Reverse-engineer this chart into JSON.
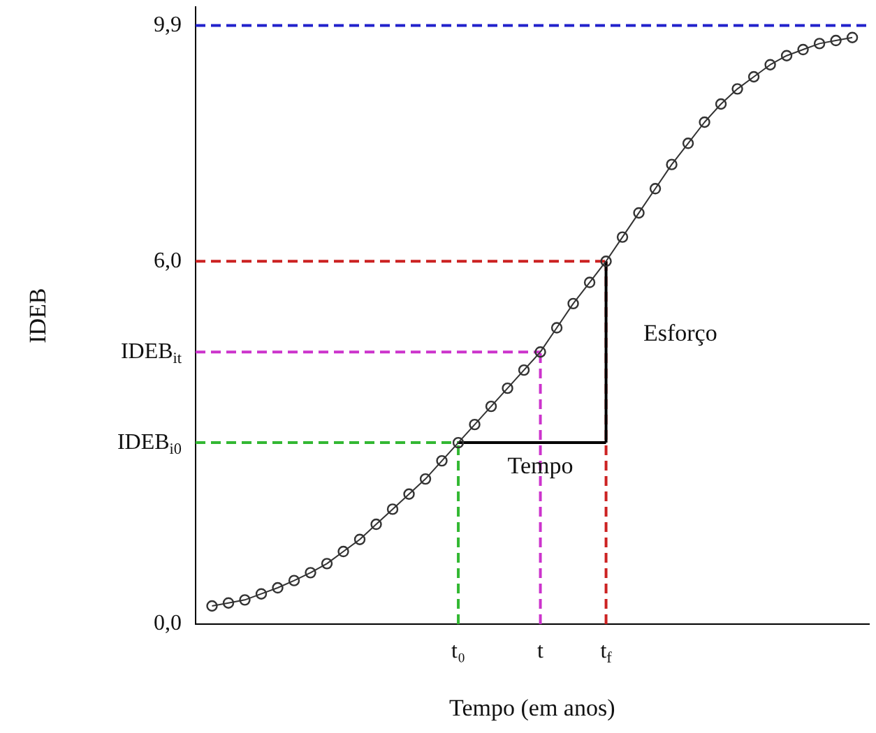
{
  "chart_data": {
    "type": "line",
    "xlabel": "Tempo (em anos)",
    "ylabel": "IDEB",
    "categories": [
      null,
      null,
      null,
      null,
      null,
      null,
      null,
      null,
      null,
      null,
      null,
      null,
      null,
      null,
      null,
      null,
      "t₀",
      null,
      null,
      null,
      null,
      "t",
      null,
      null,
      null,
      "t$_{f}$",
      null,
      null,
      null,
      null,
      null,
      null,
      null,
      null,
      null,
      null,
      null,
      null,
      null,
      null,
      null,
      null
    ],
    "ylim": [
      0,
      10.2
    ],
    "yticks": [
      {
        "value": 0,
        "label": "0,0"
      },
      {
        "value": 3,
        "label": "IDEB$_{i0}$"
      },
      {
        "value": 4.5,
        "label": "IDEB$_{it}$"
      },
      {
        "value": 6,
        "label": "6,0"
      },
      {
        "value": 9.9,
        "label": "9,9"
      }
    ],
    "series": [
      {
        "color": "#333333",
        "marker": "circle",
        "values": [
          null,
          0.3,
          0.35,
          0.4,
          0.5,
          0.6,
          0.72,
          0.85,
          1.0,
          1.2,
          1.4,
          1.65,
          1.9,
          2.15,
          2.4,
          2.7,
          3.0,
          3.3,
          3.6,
          3.9,
          4.2,
          4.5,
          4.9,
          5.3,
          5.65,
          6.0,
          6.4,
          6.8,
          7.2,
          7.6,
          7.95,
          8.3,
          8.6,
          8.85,
          9.05,
          9.25,
          9.4,
          9.5,
          9.6,
          9.65,
          9.7,
          null
        ]
      },
      {
        "color": "#000000",
        "marker": "none",
        "line_style": "solid",
        "values": [
          null,
          null,
          null,
          null,
          null,
          null,
          null,
          null,
          null,
          null,
          null,
          null,
          null,
          null,
          null,
          null,
          3,
          3,
          3,
          3,
          3,
          3,
          3,
          3,
          3,
          3,
          null,
          null,
          null,
          null,
          null,
          null,
          null,
          null,
          null,
          null,
          null,
          null,
          null,
          null,
          null,
          null
        ],
        "errors": [
          null,
          null,
          null,
          null,
          null,
          null,
          null,
          null,
          null,
          null,
          null,
          null,
          null,
          null,
          null,
          null,
          null,
          null,
          null,
          null,
          null,
          null,
          null,
          null,
          null,
          [
            3,
            6
          ],
          null,
          null,
          null,
          null,
          null,
          null,
          null,
          null,
          null,
          null,
          null,
          null,
          null,
          null,
          null,
          null
        ]
      }
    ],
    "ref_lines": [
      {
        "axis": "y",
        "value": 9.9,
        "color": "#2222cc",
        "line_style": "dashed"
      },
      {
        "axis": "y",
        "value": 6,
        "color": "#cc2222",
        "line_style": "dashed"
      },
      {
        "axis": "y",
        "value": 4.5,
        "color": "#cc33cc",
        "line_style": "dashed"
      },
      {
        "axis": "y",
        "value": 3,
        "color": "#33b833",
        "line_style": "dashed"
      },
      {
        "axis": "x",
        "value": "t$_{f}$",
        "color": "#cc2222",
        "line_style": "dashed"
      },
      {
        "axis": "x",
        "value": "t",
        "color": "#cc33cc",
        "line_style": "dashed"
      },
      {
        "axis": "x",
        "value": "t₀",
        "color": "#33b833",
        "line_style": "dashed"
      }
    ],
    "annotations": [
      {
        "text": "Tempo",
        "x": "t",
        "y": 2.6
      },
      "Esforço"
    ]
  }
}
